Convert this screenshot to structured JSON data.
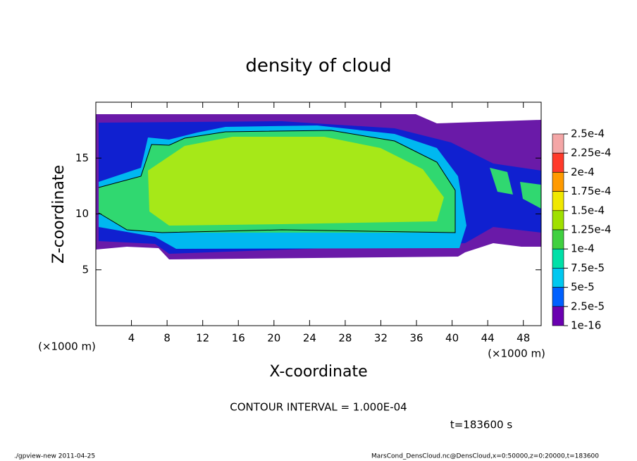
{
  "chart_data": {
    "type": "contour",
    "title": "density of cloud",
    "x_label": "X-coordinate",
    "y_label": "Z-coordinate",
    "x_unit": "(×1000 m)",
    "y_unit": "(×1000 m)",
    "xlim": [
      0,
      50
    ],
    "ylim": [
      0,
      20
    ],
    "xticks": [
      4,
      8,
      12,
      16,
      20,
      24,
      28,
      32,
      36,
      40,
      44,
      48
    ],
    "yticks": [
      5,
      10,
      15
    ],
    "colorbar": {
      "levels": [
        {
          "value": 0.00025,
          "label": "2.5e-4"
        },
        {
          "value": 0.000225,
          "label": "2.25e-4"
        },
        {
          "value": 0.0002,
          "label": "2e-4"
        },
        {
          "value": 0.000175,
          "label": "1.75e-4"
        },
        {
          "value": 0.00015,
          "label": "1.5e-4"
        },
        {
          "value": 0.000125,
          "label": "1.25e-4"
        },
        {
          "value": 0.0001,
          "label": "1e-4"
        },
        {
          "value": 7.5e-05,
          "label": "7.5e-5"
        },
        {
          "value": 5e-05,
          "label": "5e-5"
        },
        {
          "value": 2.5e-05,
          "label": "2.5e-5"
        },
        {
          "value": 1e-16,
          "label": "1e-16"
        }
      ],
      "colors": [
        "#f4a6a6",
        "#ff3a2a",
        "#ff9a00",
        "#f0e800",
        "#a0e000",
        "#40d040",
        "#00e0a8",
        "#00c8f0",
        "#0060ff",
        "#6a00b0"
      ]
    },
    "contour_interval": "CONTOUR INTERVAL = 1.000E-04",
    "time": "t=183600 s",
    "footer_left": "./gpview-new  2011-04-25",
    "footer_right": "MarsCond_DensCloud.nc@DensCloud,x=0:50000,z=0:20000,t=183600"
  }
}
